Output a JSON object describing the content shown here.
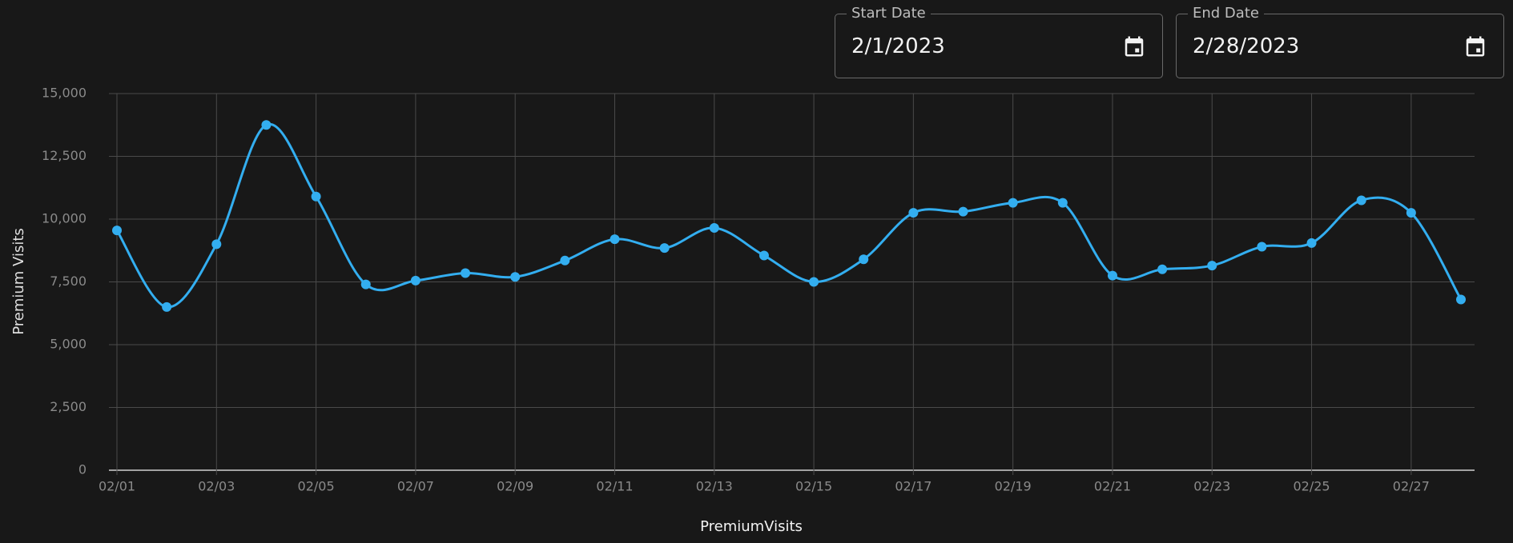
{
  "date_range": {
    "start": {
      "label": "Start Date",
      "value": "2/1/2023"
    },
    "end": {
      "label": "End Date",
      "value": "2/28/2023"
    }
  },
  "chart_data": {
    "type": "line",
    "x_label": "PremiumVisits",
    "y_label": "Premium Visits",
    "categories": [
      "02/01",
      null,
      "02/03",
      null,
      "02/05",
      null,
      "02/07",
      null,
      "02/09",
      null,
      "02/11",
      null,
      "02/13",
      null,
      "02/15",
      null,
      "02/17",
      null,
      "02/19",
      null,
      "02/21",
      null,
      "02/23",
      null,
      "02/25",
      null,
      "02/27",
      null
    ],
    "series": [
      {
        "color": "#33aef0",
        "values": [
          9550,
          6500,
          9000,
          13750,
          10900,
          7400,
          7550,
          7850,
          7700,
          8350,
          9200,
          8850,
          9650,
          8550,
          7500,
          8400,
          10250,
          10300,
          10650,
          10650,
          7750,
          8000,
          8150,
          8900,
          9050,
          10750,
          10250,
          6800
        ]
      }
    ],
    "ylim": [
      0,
      15000
    ],
    "yticks": [
      0,
      {
        "value": 2500,
        "label": "2,500"
      },
      {
        "value": 5000,
        "label": "5,000"
      },
      {
        "value": 7500,
        "label": "7,500"
      },
      {
        "value": 10000,
        "label": "10,000"
      },
      {
        "value": 12500,
        "label": "12,500"
      },
      {
        "value": 15000,
        "label": "15,000"
      }
    ],
    "grid": true,
    "smooth": true
  }
}
